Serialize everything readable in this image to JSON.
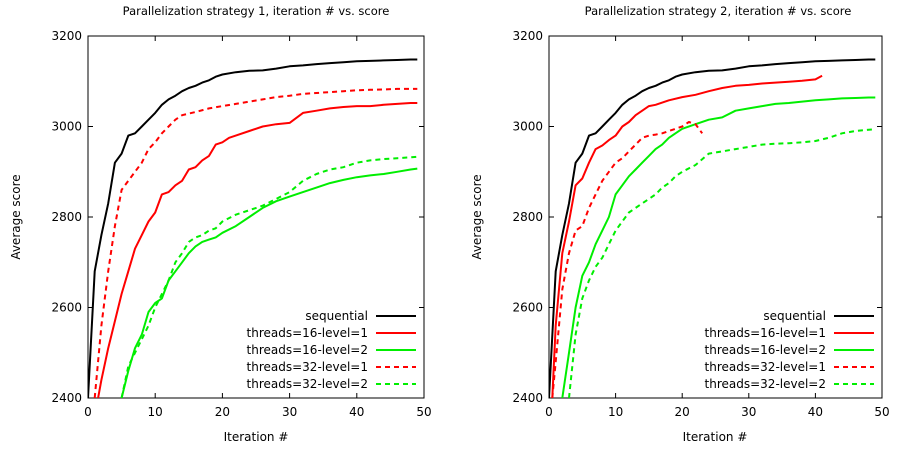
{
  "chart_data": [
    {
      "type": "line",
      "title": "Parallelization strategy 1, iteration # vs. score",
      "xlabel": "Iteration #",
      "ylabel": "Average score",
      "xlim": [
        0,
        50
      ],
      "ylim": [
        2400,
        3200
      ],
      "xticks": [
        0,
        10,
        20,
        30,
        40,
        50
      ],
      "yticks": [
        2400,
        2600,
        2800,
        3000,
        3200
      ],
      "grid": false,
      "legend": "bottom-right",
      "series": [
        {
          "name": "sequential",
          "color": "#000000",
          "dash": "solid",
          "x": [
            0,
            1,
            2,
            3,
            4,
            5,
            6,
            7,
            8,
            9,
            10,
            11,
            12,
            13,
            14,
            15,
            16,
            17,
            18,
            19,
            20,
            22,
            24,
            26,
            28,
            30,
            32,
            34,
            36,
            38,
            40,
            42,
            44,
            46,
            48,
            49
          ],
          "y": [
            2400,
            2680,
            2760,
            2830,
            2920,
            2940,
            2980,
            2985,
            3000,
            3015,
            3030,
            3048,
            3060,
            3068,
            3078,
            3085,
            3090,
            3097,
            3102,
            3110,
            3115,
            3120,
            3123,
            3124,
            3128,
            3133,
            3135,
            3138,
            3140,
            3142,
            3144,
            3145,
            3146,
            3147,
            3148,
            3148
          ]
        },
        {
          "name": "threads=16-level=1",
          "color": "#ff0000",
          "dash": "solid",
          "x": [
            1.5,
            2,
            3,
            4,
            5,
            6,
            7,
            8,
            9,
            10,
            11,
            12,
            13,
            14,
            15,
            16,
            17,
            18,
            19,
            20,
            21,
            22,
            24,
            26,
            28,
            30,
            32,
            34,
            36,
            38,
            40,
            42,
            44,
            46,
            48,
            49
          ],
          "y": [
            2400,
            2440,
            2510,
            2570,
            2630,
            2680,
            2730,
            2760,
            2790,
            2810,
            2850,
            2855,
            2870,
            2880,
            2905,
            2910,
            2925,
            2935,
            2960,
            2965,
            2975,
            2980,
            2990,
            3000,
            3005,
            3008,
            3030,
            3035,
            3040,
            3043,
            3045,
            3045,
            3048,
            3050,
            3052,
            3052
          ]
        },
        {
          "name": "threads=16-level=2",
          "color": "#00ee00",
          "dash": "solid",
          "x": [
            5,
            6,
            7,
            8,
            9,
            10,
            11,
            12,
            13,
            14,
            15,
            16,
            17,
            18,
            19,
            20,
            22,
            24,
            26,
            28,
            30,
            32,
            34,
            36,
            38,
            40,
            42,
            44,
            46,
            48,
            49
          ],
          "y": [
            2400,
            2460,
            2510,
            2540,
            2590,
            2610,
            2620,
            2660,
            2680,
            2700,
            2720,
            2735,
            2745,
            2750,
            2755,
            2765,
            2780,
            2800,
            2820,
            2835,
            2845,
            2855,
            2865,
            2875,
            2882,
            2888,
            2892,
            2895,
            2900,
            2905,
            2907
          ]
        },
        {
          "name": "threads=32-level=1",
          "color": "#ff0000",
          "dash": "dashed",
          "x": [
            1,
            2,
            3,
            4,
            5,
            6,
            7,
            8,
            9,
            10,
            11,
            12,
            13,
            14,
            16,
            18,
            20,
            22,
            24,
            26,
            28,
            30,
            32,
            34,
            36,
            38,
            40,
            42,
            44,
            46,
            48,
            49
          ],
          "y": [
            2400,
            2560,
            2680,
            2780,
            2860,
            2880,
            2900,
            2920,
            2950,
            2965,
            2985,
            3000,
            3015,
            3025,
            3032,
            3040,
            3045,
            3050,
            3055,
            3060,
            3065,
            3068,
            3072,
            3074,
            3076,
            3078,
            3080,
            3081,
            3082,
            3083,
            3083,
            3083
          ]
        },
        {
          "name": "threads=32-level=2",
          "color": "#00ee00",
          "dash": "dashed",
          "x": [
            5,
            6,
            7,
            8,
            9,
            10,
            11,
            12,
            13,
            14,
            15,
            16,
            17,
            18,
            19,
            20,
            22,
            24,
            26,
            28,
            30,
            32,
            34,
            36,
            38,
            40,
            42,
            44,
            46,
            48,
            49
          ],
          "y": [
            2400,
            2470,
            2500,
            2530,
            2560,
            2600,
            2630,
            2660,
            2700,
            2720,
            2745,
            2755,
            2760,
            2770,
            2775,
            2790,
            2805,
            2815,
            2825,
            2840,
            2855,
            2880,
            2895,
            2905,
            2910,
            2920,
            2925,
            2928,
            2930,
            2932,
            2933
          ]
        }
      ]
    },
    {
      "type": "line",
      "title": "Parallelization strategy 2, iteration # vs. score",
      "xlabel": "Iteration #",
      "ylabel": "Average score",
      "xlim": [
        0,
        50
      ],
      "ylim": [
        2400,
        3200
      ],
      "xticks": [
        0,
        10,
        20,
        30,
        40,
        50
      ],
      "yticks": [
        2400,
        2600,
        2800,
        3000,
        3200
      ],
      "grid": false,
      "legend": "bottom-right",
      "series": [
        {
          "name": "sequential",
          "color": "#000000",
          "dash": "solid",
          "x": [
            0,
            1,
            2,
            3,
            4,
            5,
            6,
            7,
            8,
            9,
            10,
            11,
            12,
            13,
            14,
            15,
            16,
            17,
            18,
            19,
            20,
            22,
            24,
            26,
            28,
            30,
            32,
            34,
            36,
            38,
            40,
            42,
            44,
            46,
            48,
            49
          ],
          "y": [
            2400,
            2680,
            2760,
            2830,
            2920,
            2940,
            2980,
            2985,
            3000,
            3015,
            3030,
            3048,
            3060,
            3068,
            3078,
            3085,
            3090,
            3097,
            3102,
            3110,
            3115,
            3120,
            3123,
            3124,
            3128,
            3133,
            3135,
            3138,
            3140,
            3142,
            3144,
            3145,
            3146,
            3147,
            3148,
            3148
          ]
        },
        {
          "name": "threads=16-level=1",
          "color": "#ff0000",
          "dash": "solid",
          "x": [
            0.5,
            1,
            2,
            3,
            4,
            5,
            6,
            7,
            8,
            9,
            10,
            11,
            12,
            13,
            14,
            15,
            16,
            18,
            20,
            22,
            24,
            26,
            28,
            30,
            32,
            34,
            36,
            38,
            40,
            41
          ],
          "y": [
            2400,
            2560,
            2720,
            2790,
            2870,
            2885,
            2920,
            2950,
            2958,
            2970,
            2980,
            3000,
            3010,
            3025,
            3035,
            3045,
            3048,
            3058,
            3065,
            3070,
            3078,
            3085,
            3090,
            3092,
            3095,
            3097,
            3099,
            3101,
            3104,
            3112
          ]
        },
        {
          "name": "threads=16-level=2",
          "color": "#00ee00",
          "dash": "solid",
          "x": [
            2,
            3,
            4,
            5,
            6,
            7,
            8,
            9,
            10,
            11,
            12,
            13,
            14,
            15,
            16,
            17,
            18,
            19,
            20,
            22,
            24,
            26,
            28,
            30,
            32,
            34,
            36,
            38,
            40,
            42,
            44,
            46,
            48,
            49
          ],
          "y": [
            2400,
            2500,
            2600,
            2670,
            2700,
            2740,
            2770,
            2800,
            2850,
            2870,
            2890,
            2905,
            2920,
            2935,
            2950,
            2960,
            2975,
            2985,
            2995,
            3005,
            3015,
            3020,
            3035,
            3040,
            3045,
            3050,
            3052,
            3055,
            3058,
            3060,
            3062,
            3063,
            3064,
            3064
          ]
        },
        {
          "name": "threads=32-level=1",
          "color": "#ff0000",
          "dash": "dashed",
          "x": [
            0.5,
            1,
            2,
            3,
            4,
            5,
            6,
            7,
            8,
            9,
            10,
            11,
            12,
            13,
            14,
            15,
            16,
            17,
            18,
            19,
            20,
            21,
            22,
            23
          ],
          "y": [
            2400,
            2480,
            2640,
            2720,
            2770,
            2780,
            2820,
            2850,
            2880,
            2900,
            2920,
            2930,
            2945,
            2960,
            2975,
            2980,
            2982,
            2985,
            2990,
            2995,
            3000,
            3010,
            3005,
            2985
          ]
        },
        {
          "name": "threads=32-level=2",
          "color": "#00ee00",
          "dash": "dashed",
          "x": [
            3,
            4,
            5,
            6,
            7,
            8,
            9,
            10,
            11,
            12,
            13,
            14,
            15,
            16,
            17,
            18,
            19,
            20,
            22,
            24,
            26,
            28,
            30,
            32,
            34,
            36,
            38,
            40,
            42,
            44,
            46,
            48,
            49
          ],
          "y": [
            2400,
            2540,
            2620,
            2660,
            2690,
            2710,
            2740,
            2770,
            2790,
            2810,
            2820,
            2830,
            2840,
            2850,
            2865,
            2875,
            2890,
            2900,
            2915,
            2940,
            2945,
            2950,
            2955,
            2960,
            2962,
            2963,
            2965,
            2968,
            2975,
            2985,
            2990,
            2993,
            2994
          ]
        }
      ]
    }
  ]
}
